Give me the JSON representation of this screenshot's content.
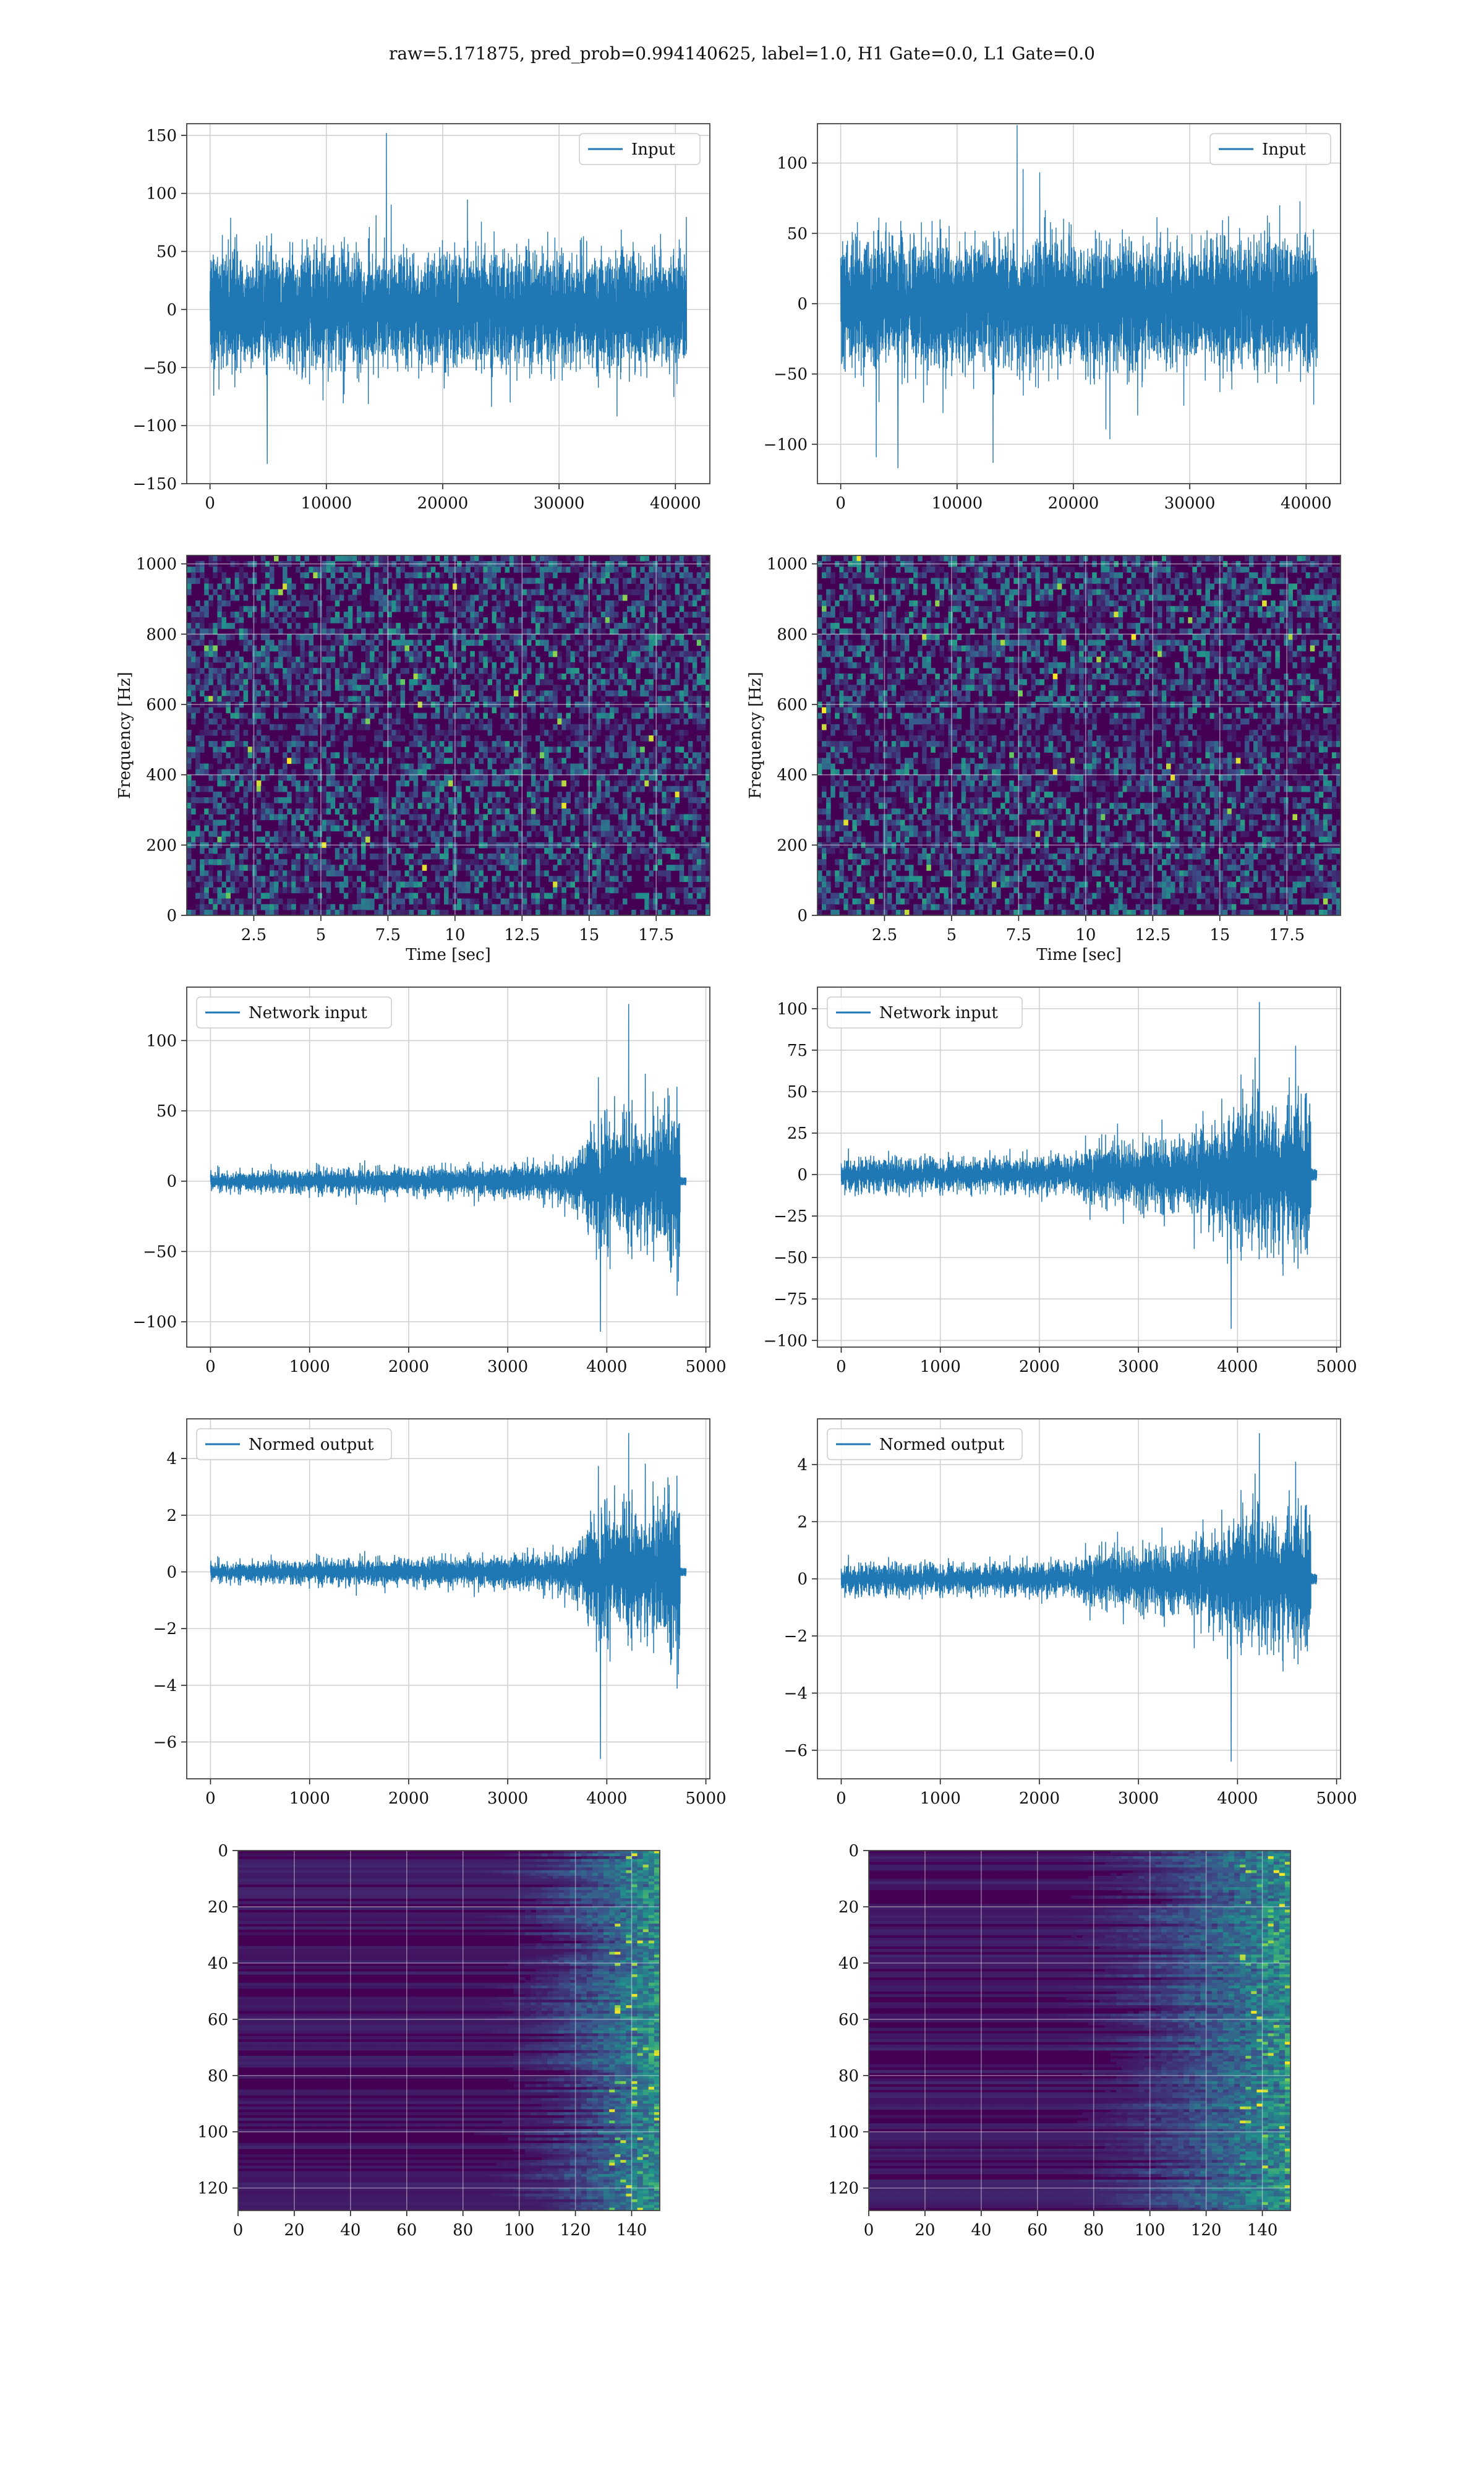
{
  "figure": {
    "title": "raw=5.171875, pred_prob=0.994140625, label=1.0, H1 Gate=0.0, L1 Gate=0.0"
  },
  "colors": {
    "line": "#1f77b4",
    "grid": "#d0d0d0",
    "frame": "#444444",
    "viridis_low": "#440154",
    "viridis_mid": "#21918c",
    "viridis_high": "#fde725"
  },
  "chart_data": [
    {
      "id": "h1-input",
      "type": "line",
      "title": "",
      "xlabel": "",
      "ylabel": "",
      "legend": [
        "Input"
      ],
      "legend_position": "upper right",
      "xlim": [
        -2000,
        42960
      ],
      "ylim": [
        -150,
        160
      ],
      "xticks": [
        0,
        10000,
        20000,
        30000,
        40000
      ],
      "yticks": [
        -150,
        -100,
        -50,
        0,
        50,
        100,
        150
      ],
      "series": [
        {
          "name": "Input",
          "x_range": [
            0,
            40960
          ],
          "envelope": {
            "typical": 60,
            "peak": 152,
            "trough": -133
          }
        }
      ]
    },
    {
      "id": "l1-input",
      "type": "line",
      "title": "",
      "xlabel": "",
      "ylabel": "",
      "legend": [
        "Input"
      ],
      "legend_position": "upper right",
      "xlim": [
        -2000,
        42960
      ],
      "ylim": [
        -128,
        128
      ],
      "xticks": [
        0,
        10000,
        20000,
        30000,
        40000
      ],
      "yticks": [
        -100,
        -50,
        0,
        50,
        100
      ],
      "series": [
        {
          "name": "Input",
          "x_range": [
            0,
            40960
          ],
          "envelope": {
            "typical": 55,
            "peak": 127,
            "trough": -117
          }
        }
      ]
    },
    {
      "id": "h1-spectrogram",
      "type": "heatmap",
      "title": "",
      "xlabel": "Time [sec]",
      "ylabel": "Frequency [Hz]",
      "xlim": [
        0,
        19.5
      ],
      "ylim": [
        0,
        1024
      ],
      "xticks": [
        2.5,
        5.0,
        7.5,
        10.0,
        12.5,
        15.0,
        17.5
      ],
      "yticks": [
        0,
        200,
        400,
        600,
        800,
        1000
      ],
      "colormap": "viridis",
      "grid": true
    },
    {
      "id": "l1-spectrogram",
      "type": "heatmap",
      "title": "",
      "xlabel": "Time [sec]",
      "ylabel": "Frequency [Hz]",
      "xlim": [
        0,
        19.5
      ],
      "ylim": [
        0,
        1024
      ],
      "xticks": [
        2.5,
        5.0,
        7.5,
        10.0,
        12.5,
        15.0,
        17.5
      ],
      "yticks": [
        0,
        200,
        400,
        600,
        800,
        1000
      ],
      "colormap": "viridis",
      "grid": true
    },
    {
      "id": "h1-network-input",
      "type": "line",
      "title": "",
      "xlabel": "",
      "ylabel": "",
      "legend": [
        "Network input"
      ],
      "legend_position": "upper left",
      "xlim": [
        -240,
        5040
      ],
      "ylim": [
        -118,
        138
      ],
      "xticks": [
        0,
        1000,
        2000,
        3000,
        4000,
        5000
      ],
      "yticks": [
        -100,
        -50,
        0,
        50,
        100
      ],
      "series": [
        {
          "name": "Network input",
          "profile": [
            [
              0,
              12
            ],
            [
              1000,
              14
            ],
            [
              2000,
              15
            ],
            [
              3000,
              18
            ],
            [
              3600,
              22
            ],
            [
              3750,
              50
            ],
            [
              4000,
              75
            ],
            [
              4400,
              70
            ],
            [
              4740,
              85
            ]
          ],
          "burst_end": 4740,
          "tail_end": 4800,
          "peak": 126,
          "trough": -107
        }
      ]
    },
    {
      "id": "l1-network-input",
      "type": "line",
      "title": "",
      "xlabel": "",
      "ylabel": "",
      "legend": [
        "Network input"
      ],
      "legend_position": "upper left",
      "xlim": [
        -240,
        5040
      ],
      "ylim": [
        -104,
        113
      ],
      "xticks": [
        0,
        1000,
        2000,
        3000,
        4000,
        5000
      ],
      "yticks": [
        -100,
        -75,
        -50,
        -25,
        0,
        25,
        50,
        75,
        100
      ],
      "series": [
        {
          "name": "Network input",
          "profile": [
            [
              0,
              15
            ],
            [
              1000,
              16
            ],
            [
              2000,
              17
            ],
            [
              2400,
              18
            ],
            [
              2500,
              30
            ],
            [
              3500,
              35
            ],
            [
              3750,
              50
            ],
            [
              4000,
              70
            ],
            [
              4400,
              60
            ],
            [
              4740,
              80
            ]
          ],
          "burst_end": 4740,
          "tail_end": 4800,
          "peak": 104,
          "trough": -93
        }
      ]
    },
    {
      "id": "h1-normed-output",
      "type": "line",
      "title": "",
      "xlabel": "",
      "ylabel": "",
      "legend": [
        "Normed output"
      ],
      "legend_position": "upper left",
      "xlim": [
        -240,
        5040
      ],
      "ylim": [
        -7.3,
        5.4
      ],
      "xticks": [
        0,
        1000,
        2000,
        3000,
        4000,
        5000
      ],
      "yticks": [
        -6,
        -4,
        -2,
        0,
        2,
        4
      ],
      "series": [
        {
          "name": "Normed output",
          "profile": [
            [
              0,
              0.6
            ],
            [
              1000,
              0.7
            ],
            [
              2000,
              0.75
            ],
            [
              3000,
              0.9
            ],
            [
              3600,
              1.1
            ],
            [
              3750,
              2.5
            ],
            [
              4000,
              3.8
            ],
            [
              4400,
              3.5
            ],
            [
              4740,
              4.3
            ]
          ],
          "burst_end": 4740,
          "tail_end": 4800,
          "peak": 4.9,
          "trough": -6.6
        }
      ]
    },
    {
      "id": "l1-normed-output",
      "type": "line",
      "title": "",
      "xlabel": "",
      "ylabel": "",
      "legend": [
        "Normed output"
      ],
      "legend_position": "upper left",
      "xlim": [
        -240,
        5040
      ],
      "ylim": [
        -7.0,
        5.6
      ],
      "xticks": [
        0,
        1000,
        2000,
        3000,
        4000,
        5000
      ],
      "yticks": [
        -6,
        -4,
        -2,
        0,
        2,
        4
      ],
      "series": [
        {
          "name": "Normed output",
          "profile": [
            [
              0,
              0.8
            ],
            [
              1000,
              0.85
            ],
            [
              2000,
              0.9
            ],
            [
              2400,
              0.95
            ],
            [
              2500,
              1.6
            ],
            [
              3500,
              1.9
            ],
            [
              3750,
              2.7
            ],
            [
              4000,
              3.6
            ],
            [
              4400,
              3.2
            ],
            [
              4740,
              4.2
            ]
          ],
          "burst_end": 4740,
          "tail_end": 4800,
          "peak": 5.1,
          "trough": -6.4
        }
      ]
    },
    {
      "id": "h1-feature-map",
      "type": "heatmap",
      "title": "",
      "xlabel": "",
      "ylabel": "",
      "xlim": [
        0,
        150
      ],
      "ylim": [
        128,
        0
      ],
      "xticks": [
        0,
        20,
        40,
        60,
        80,
        100,
        120,
        140
      ],
      "yticks": [
        0,
        20,
        40,
        60,
        80,
        100,
        120
      ],
      "colormap": "viridis",
      "grid": true
    },
    {
      "id": "l1-feature-map",
      "type": "heatmap",
      "title": "",
      "xlabel": "",
      "ylabel": "",
      "xlim": [
        0,
        150
      ],
      "ylim": [
        128,
        0
      ],
      "xticks": [
        0,
        20,
        40,
        60,
        80,
        100,
        120,
        140
      ],
      "yticks": [
        0,
        20,
        40,
        60,
        80,
        100,
        120
      ],
      "colormap": "viridis",
      "grid": true
    }
  ]
}
